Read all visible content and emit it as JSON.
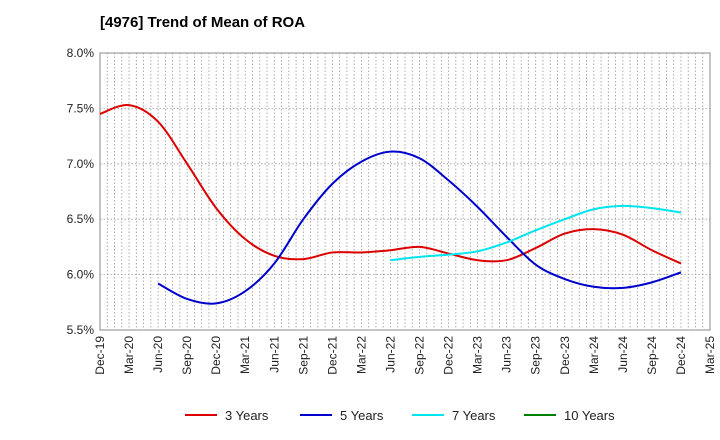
{
  "chart_data": {
    "type": "line",
    "title": "[4976]  Trend of Mean of ROA",
    "xlabel": "",
    "ylabel": "",
    "x": [
      "Dec-19",
      "Mar-20",
      "Jun-20",
      "Sep-20",
      "Dec-20",
      "Mar-21",
      "Jun-21",
      "Sep-21",
      "Dec-21",
      "Mar-22",
      "Jun-22",
      "Sep-22",
      "Dec-22",
      "Mar-23",
      "Jun-23",
      "Sep-23",
      "Dec-23",
      "Mar-24",
      "Jun-24",
      "Sep-24",
      "Dec-24",
      "Mar-25"
    ],
    "ylim": [
      5.5,
      8.0
    ],
    "y_ticks": [
      5.5,
      6.0,
      6.5,
      7.0,
      7.5,
      8.0
    ],
    "y_tick_labels": [
      "5.5%",
      "6.0%",
      "6.5%",
      "7.0%",
      "7.5%",
      "8.0%"
    ],
    "grid": true,
    "legend_position": "bottom",
    "series": [
      {
        "name": "3 Years",
        "color": "#dd0000",
        "values": [
          7.45,
          7.53,
          7.38,
          7.0,
          6.6,
          6.32,
          6.17,
          6.14,
          6.2,
          6.2,
          6.22,
          6.25,
          6.19,
          6.13,
          6.13,
          6.24,
          6.37,
          6.41,
          6.36,
          6.22,
          6.1,
          null
        ]
      },
      {
        "name": "5 Years",
        "color": "#0000cc",
        "values": [
          null,
          null,
          5.92,
          5.78,
          5.74,
          5.85,
          6.1,
          6.5,
          6.82,
          7.02,
          7.11,
          7.05,
          6.85,
          6.61,
          6.34,
          6.09,
          5.96,
          5.89,
          5.88,
          5.93,
          6.02,
          null
        ]
      },
      {
        "name": "7 Years",
        "color": "#00e5ee",
        "values": [
          null,
          null,
          null,
          null,
          null,
          null,
          null,
          null,
          null,
          null,
          6.13,
          6.16,
          6.18,
          6.21,
          6.29,
          6.4,
          6.5,
          6.59,
          6.62,
          6.6,
          6.56,
          null
        ]
      },
      {
        "name": "10 Years",
        "color": "#008000",
        "values": [
          null,
          null,
          null,
          null,
          null,
          null,
          null,
          null,
          null,
          null,
          null,
          null,
          null,
          null,
          null,
          null,
          null,
          null,
          null,
          null,
          null,
          null
        ]
      }
    ]
  }
}
